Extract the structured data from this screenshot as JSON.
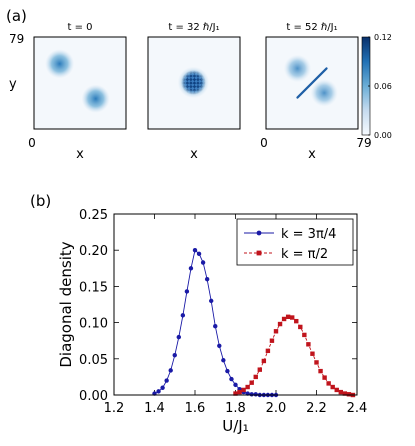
{
  "figure": {
    "panel_a_label": "(a)",
    "panel_b_label": "(b)"
  },
  "chart_data": [
    {
      "type": "heatmap",
      "panel": "(a)",
      "xlabel": "x",
      "ylabel": "y",
      "x_range": [
        0,
        79
      ],
      "y_range": [
        0,
        79
      ],
      "x_ticks": [
        "0",
        "79"
      ],
      "y_ticks": [
        "79"
      ],
      "colormap": "Blues",
      "colorbar": {
        "ticks": [
          0.0,
          0.06,
          0.12
        ],
        "tick_labels": [
          "0.00",
          "0.06",
          "0.12"
        ],
        "range": [
          0,
          0.12
        ]
      },
      "frames": [
        {
          "title": "t = 0",
          "blobs": [
            {
              "x": 22,
              "y": 56,
              "peak": 0.09
            },
            {
              "x": 53,
              "y": 26,
              "peak": 0.08
            }
          ],
          "interference": false
        },
        {
          "title": "t = 32 ℏ/J₁",
          "blobs": [
            {
              "x": 39,
              "y": 40,
              "peak": 0.12
            }
          ],
          "interference": true
        },
        {
          "title": "t = 52 ℏ/J₁",
          "blobs": [
            {
              "x": 27,
              "y": 52,
              "peak": 0.07
            },
            {
              "x": 50,
              "y": 31,
              "peak": 0.07
            }
          ],
          "diagonal_streak": {
            "from": [
              27,
              27
            ],
            "to": [
              52,
              52
            ],
            "peak": 0.12
          },
          "interference": false
        }
      ]
    },
    {
      "type": "line",
      "panel": "(b)",
      "xlabel": "U/J₁",
      "ylabel": "Diagonal density",
      "xlim": [
        1.2,
        2.4
      ],
      "ylim": [
        0,
        0.25
      ],
      "x_ticks": [
        "1.2",
        "1.4",
        "1.6",
        "1.8",
        "2.0",
        "2.2",
        "2.4"
      ],
      "y_ticks": [
        "0.00",
        "0.05",
        "0.10",
        "0.15",
        "0.20",
        "0.25"
      ],
      "legend_position": "top-right",
      "series": [
        {
          "name": "k = 3π/4",
          "color": "#1a1aa6",
          "marker": "circle",
          "line": "solid",
          "x": [
            1.4,
            1.42,
            1.44,
            1.46,
            1.48,
            1.5,
            1.52,
            1.54,
            1.56,
            1.58,
            1.6,
            1.62,
            1.64,
            1.66,
            1.68,
            1.7,
            1.72,
            1.74,
            1.76,
            1.78,
            1.8,
            1.82,
            1.84,
            1.86,
            1.88,
            1.9,
            1.92,
            1.94,
            1.96,
            1.98,
            2.0
          ],
          "values": [
            0.002,
            0.005,
            0.01,
            0.02,
            0.034,
            0.055,
            0.08,
            0.11,
            0.143,
            0.175,
            0.2,
            0.195,
            0.183,
            0.16,
            0.13,
            0.095,
            0.068,
            0.048,
            0.033,
            0.022,
            0.014,
            0.008,
            0.004,
            0.002,
            0.001,
            0.001,
            0.0,
            0.0,
            0.0,
            0.0,
            0.0
          ]
        },
        {
          "name": "k = π/2",
          "color": "#c0141c",
          "marker": "square",
          "line": "dashed",
          "x": [
            1.8,
            1.82,
            1.84,
            1.86,
            1.88,
            1.9,
            1.92,
            1.94,
            1.96,
            1.98,
            2.0,
            2.02,
            2.04,
            2.06,
            2.08,
            2.1,
            2.12,
            2.14,
            2.16,
            2.18,
            2.2,
            2.22,
            2.24,
            2.26,
            2.28,
            2.3,
            2.32,
            2.34,
            2.36,
            2.38
          ],
          "values": [
            0.002,
            0.004,
            0.007,
            0.011,
            0.017,
            0.025,
            0.035,
            0.047,
            0.061,
            0.075,
            0.088,
            0.098,
            0.105,
            0.108,
            0.107,
            0.102,
            0.094,
            0.083,
            0.07,
            0.057,
            0.045,
            0.033,
            0.024,
            0.016,
            0.011,
            0.007,
            0.004,
            0.002,
            0.001,
            0.0
          ]
        }
      ]
    }
  ]
}
